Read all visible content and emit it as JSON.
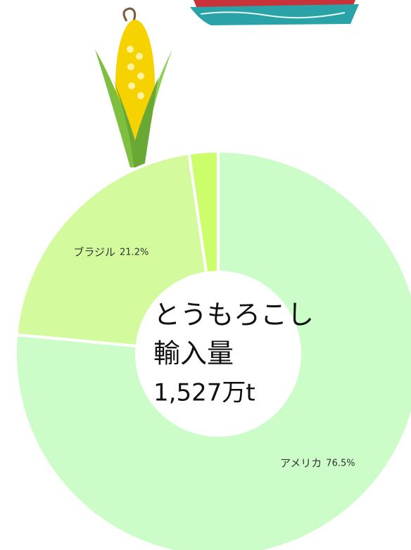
{
  "chart_data": {
    "type": "donut",
    "title": "とうもろこし",
    "subtitle": "輸入量",
    "total_label": "1,527万t",
    "categories": [
      "アメリカ",
      "ブラジル",
      null
    ],
    "values": [
      76.5,
      21.2,
      2.3
    ],
    "value_labels": [
      "76.5%",
      "21.2%",
      null
    ],
    "colors": [
      "#ccfdc8",
      "#d3fb9e",
      "#ccfd6a"
    ]
  }
}
